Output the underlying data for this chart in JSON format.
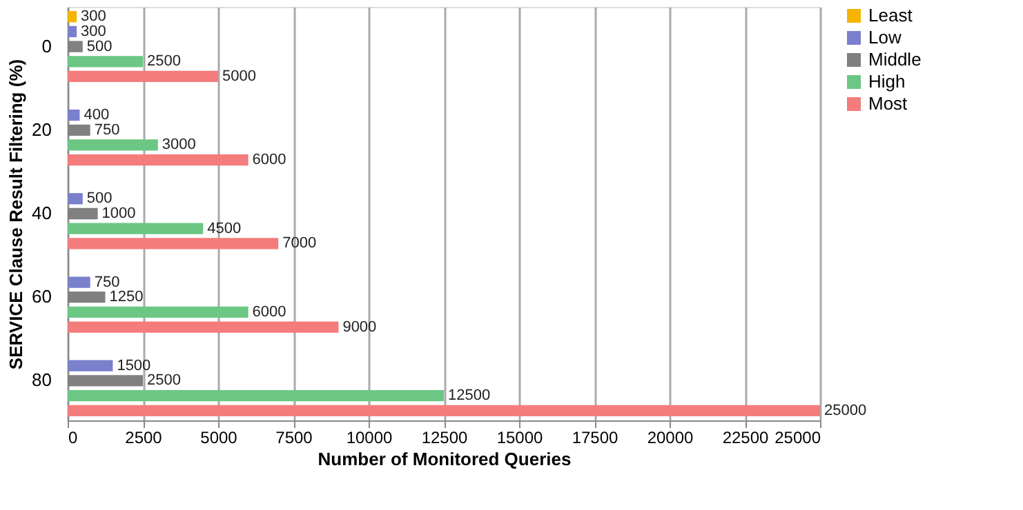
{
  "chart_data": {
    "type": "bar",
    "orientation": "horizontal",
    "xlabel": "Number of Monitored Queries",
    "ylabel": "SERVICE Clause Result Filtering (%)",
    "categories": [
      "0",
      "20",
      "40",
      "60",
      "80"
    ],
    "series": [
      {
        "name": "Least",
        "color": "#f5b400",
        "values": [
          300,
          null,
          null,
          null,
          null
        ]
      },
      {
        "name": "Low",
        "color": "#7b80cc",
        "values": [
          300,
          400,
          500,
          750,
          1500
        ]
      },
      {
        "name": "Middle",
        "color": "#808080",
        "values": [
          500,
          750,
          1000,
          1250,
          2500
        ]
      },
      {
        "name": "High",
        "color": "#6cc784",
        "values": [
          2500,
          3000,
          4500,
          6000,
          12500
        ]
      },
      {
        "name": "Most",
        "color": "#f47c7c",
        "values": [
          5000,
          6000,
          7000,
          9000,
          25000
        ]
      }
    ],
    "xlim": [
      0,
      25000
    ],
    "xticks": [
      0,
      2500,
      5000,
      7500,
      10000,
      12500,
      15000,
      17500,
      20000,
      22500,
      25000
    ],
    "grid": "x",
    "legend": "right",
    "data_labels": true
  }
}
